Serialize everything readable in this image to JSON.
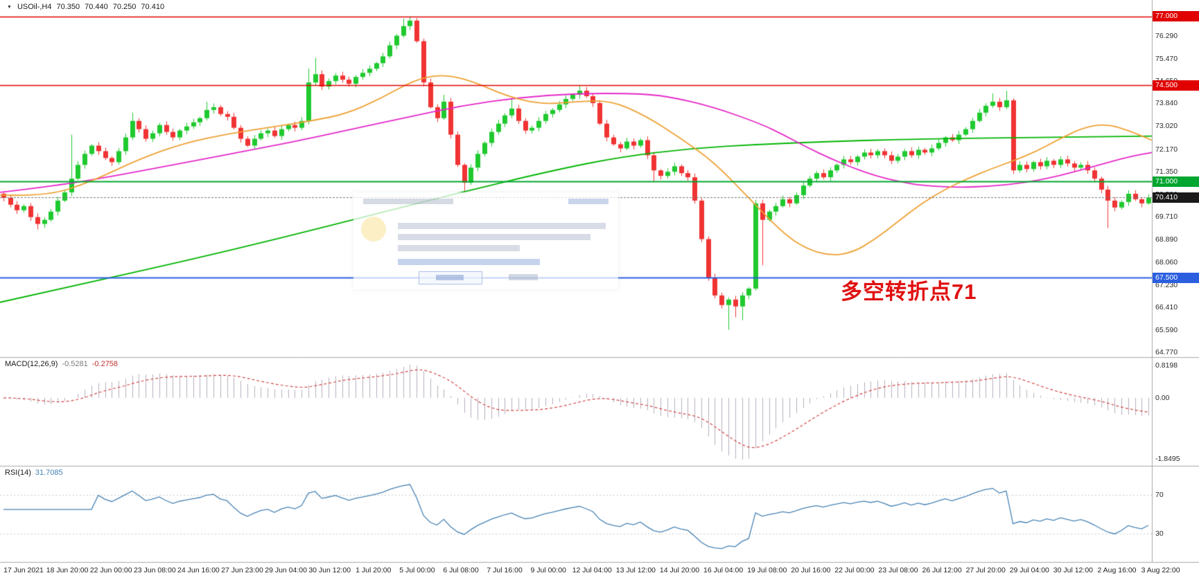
{
  "chart_data": {
    "type": "candlestick+indicators",
    "title": "USOil H4 chart with MACD and RSI",
    "symbol_info": {
      "dropdown_icon": "down-triangle",
      "symbol": "USOil-,H4",
      "open": "70.350",
      "high": "70.440",
      "low": "70.250",
      "close": "70.410"
    },
    "price_pane": {
      "axis": {
        "min": 64.63,
        "max": 77.6,
        "ticks": [
          {
            "label": "76.290",
            "value": 76.29
          },
          {
            "label": "75.470",
            "value": 75.47
          },
          {
            "label": "74.650",
            "value": 74.65
          },
          {
            "label": "73.840",
            "value": 73.84
          },
          {
            "label": "73.020",
            "value": 73.02
          },
          {
            "label": "72.170",
            "value": 72.17
          },
          {
            "label": "71.350",
            "value": 71.35
          },
          {
            "label": "70.530",
            "value": 70.53
          },
          {
            "label": "69.710",
            "value": 69.71
          },
          {
            "label": "68.890",
            "value": 68.89
          },
          {
            "label": "68.060",
            "value": 68.06
          },
          {
            "label": "67.230",
            "value": 67.23
          },
          {
            "label": "66.410",
            "value": 66.41
          },
          {
            "label": "65.590",
            "value": 65.59
          },
          {
            "label": "64.770",
            "value": 64.77
          }
        ]
      },
      "bull_color": "#1fc92f",
      "bear_color": "#f03333",
      "first_open": 70.55,
      "closes": [
        70.4,
        70.15,
        69.95,
        70.1,
        69.7,
        69.45,
        69.6,
        69.9,
        70.3,
        70.6,
        71.1,
        71.6,
        72.0,
        72.3,
        72.1,
        71.85,
        71.7,
        72.1,
        72.6,
        73.2,
        72.9,
        72.55,
        72.75,
        73.05,
        72.8,
        72.6,
        72.85,
        73.0,
        73.15,
        73.3,
        73.6,
        73.7,
        73.45,
        73.35,
        72.95,
        72.55,
        72.3,
        72.55,
        72.75,
        72.85,
        72.65,
        72.9,
        73.05,
        72.95,
        73.2,
        74.6,
        74.9,
        74.45,
        74.65,
        74.85,
        74.7,
        74.55,
        74.8,
        74.95,
        75.1,
        75.3,
        75.55,
        75.95,
        76.3,
        76.65,
        76.85,
        76.1,
        74.6,
        73.7,
        73.3,
        73.9,
        72.7,
        71.6,
        70.95,
        71.5,
        72.0,
        72.4,
        72.8,
        73.1,
        73.4,
        73.65,
        73.2,
        72.85,
        72.95,
        73.2,
        73.45,
        73.6,
        73.8,
        74.0,
        74.15,
        74.3,
        74.1,
        73.85,
        73.1,
        72.6,
        72.35,
        72.2,
        72.45,
        72.3,
        72.5,
        71.95,
        71.4,
        71.2,
        71.35,
        71.55,
        71.3,
        71.15,
        70.3,
        68.9,
        67.5,
        66.85,
        66.5,
        66.7,
        66.45,
        66.85,
        67.1,
        70.2,
        69.6,
        69.9,
        70.1,
        70.35,
        70.2,
        70.5,
        70.85,
        71.1,
        71.3,
        71.15,
        71.4,
        71.6,
        71.8,
        71.7,
        71.9,
        72.05,
        71.95,
        72.1,
        71.95,
        71.75,
        71.9,
        72.1,
        71.95,
        72.15,
        72.05,
        72.2,
        72.4,
        72.6,
        72.5,
        72.7,
        72.9,
        73.2,
        73.5,
        73.75,
        73.9,
        73.7,
        73.95,
        71.4,
        71.6,
        71.45,
        71.7,
        71.55,
        71.75,
        71.6,
        71.8,
        71.65,
        71.5,
        71.6,
        71.4,
        71.1,
        70.7,
        70.3,
        70.05,
        70.25,
        70.55,
        70.35,
        70.2,
        70.41
      ],
      "wick_overrides": {
        "high": {
          "10": 72.7,
          "19": 73.5,
          "30": 73.9,
          "45": 75.1,
          "46": 75.5,
          "59": 76.92,
          "60": 77.0,
          "65": 74.15,
          "75": 74.0,
          "85": 74.5,
          "146": 74.2,
          "148": 74.3
        },
        "low": {
          "5": 69.25,
          "68": 70.6,
          "96": 71.0,
          "107": 65.6,
          "108": 66.05,
          "109": 65.95,
          "112": 67.95,
          "163": 69.3
        }
      },
      "hlines": [
        {
          "label": "77.000",
          "value": 77.0,
          "color": "#e00000",
          "width": 1.4
        },
        {
          "label": "74.500",
          "value": 74.5,
          "color": "#e00000",
          "width": 1.4
        },
        {
          "label": "71.000",
          "value": 71.0,
          "color": "#00a62f",
          "width": 2
        },
        {
          "label": "67.500",
          "value": 67.5,
          "color": "#2b5fe0",
          "width": 2
        }
      ],
      "current_price": {
        "label": "70.410",
        "value": 70.41,
        "line_color": "#777777",
        "badge_color": "#1a1a1a"
      },
      "ma_lines": [
        {
          "name": "ma-long-green",
          "color": "#00b400",
          "points": [
            [
              0,
              66.6
            ],
            [
              0.08,
              67.35
            ],
            [
              0.16,
              68.1
            ],
            [
              0.24,
              68.9
            ],
            [
              0.32,
              69.75
            ],
            [
              0.4,
              70.6
            ],
            [
              0.48,
              71.4
            ],
            [
              0.54,
              71.9
            ],
            [
              0.6,
              72.2
            ],
            [
              0.66,
              72.35
            ],
            [
              0.72,
              72.45
            ],
            [
              0.8,
              72.55
            ],
            [
              0.9,
              72.6
            ],
            [
              1,
              72.65
            ]
          ]
        },
        {
          "name": "ma-medium-magenta",
          "color": "#e428c8",
          "points": [
            [
              0,
              70.6
            ],
            [
              0.05,
              70.85
            ],
            [
              0.1,
              71.2
            ],
            [
              0.15,
              71.6
            ],
            [
              0.2,
              72.0
            ],
            [
              0.25,
              72.4
            ],
            [
              0.3,
              72.85
            ],
            [
              0.35,
              73.3
            ],
            [
              0.4,
              73.75
            ],
            [
              0.45,
              74.05
            ],
            [
              0.5,
              74.2
            ],
            [
              0.55,
              74.2
            ],
            [
              0.58,
              74.1
            ],
            [
              0.62,
              73.7
            ],
            [
              0.66,
              73.1
            ],
            [
              0.68,
              72.7
            ],
            [
              0.7,
              72.25
            ],
            [
              0.72,
              71.85
            ],
            [
              0.74,
              71.5
            ],
            [
              0.76,
              71.2
            ],
            [
              0.78,
              71.0
            ],
            [
              0.8,
              70.85
            ],
            [
              0.83,
              70.78
            ],
            [
              0.86,
              70.82
            ],
            [
              0.89,
              70.95
            ],
            [
              0.92,
              71.2
            ],
            [
              0.95,
              71.55
            ],
            [
              0.98,
              71.9
            ],
            [
              1,
              72.05
            ]
          ]
        },
        {
          "name": "ma-fast-orange",
          "color": "#eda133",
          "points": [
            [
              0,
              70.5
            ],
            [
              0.04,
              70.45
            ],
            [
              0.08,
              71.0
            ],
            [
              0.12,
              71.8
            ],
            [
              0.16,
              72.4
            ],
            [
              0.2,
              72.75
            ],
            [
              0.24,
              73.0
            ],
            [
              0.27,
              73.2
            ],
            [
              0.3,
              73.45
            ],
            [
              0.33,
              74.0
            ],
            [
              0.36,
              74.7
            ],
            [
              0.385,
              74.9
            ],
            [
              0.41,
              74.65
            ],
            [
              0.44,
              74.1
            ],
            [
              0.47,
              73.8
            ],
            [
              0.5,
              73.9
            ],
            [
              0.53,
              73.95
            ],
            [
              0.56,
              73.4
            ],
            [
              0.59,
              72.6
            ],
            [
              0.62,
              71.7
            ],
            [
              0.65,
              70.4
            ],
            [
              0.68,
              69.1
            ],
            [
              0.7,
              68.55
            ],
            [
              0.72,
              68.3
            ],
            [
              0.74,
              68.4
            ],
            [
              0.76,
              68.9
            ],
            [
              0.78,
              69.55
            ],
            [
              0.8,
              70.2
            ],
            [
              0.82,
              70.7
            ],
            [
              0.84,
              71.1
            ],
            [
              0.86,
              71.45
            ],
            [
              0.88,
              71.75
            ],
            [
              0.9,
              72.1
            ],
            [
              0.92,
              72.55
            ],
            [
              0.94,
              72.95
            ],
            [
              0.96,
              73.1
            ],
            [
              0.98,
              72.85
            ],
            [
              1,
              72.5
            ]
          ]
        }
      ]
    },
    "macd_pane": {
      "label": "MACD(12,26,9)",
      "macd_value": "-0.5281",
      "signal_value": "-0.2758",
      "axis_labels": [
        "0.8198",
        "0.00",
        "-1.8495"
      ],
      "params": {
        "fast": 12,
        "slow": 26,
        "signal": 9
      },
      "hist_color": "#b7aebc",
      "signal_color": "#d04545"
    },
    "rsi_pane": {
      "label": "RSI(14)",
      "value": "31.7085",
      "period": 14,
      "levels": [
        70,
        30
      ],
      "level_labels": [
        "70",
        "30"
      ],
      "line_color": "#4682b4",
      "level_color": "#c9c9c9"
    },
    "time_axis": {
      "labels": [
        "17 Jun 2021",
        "18 Jun 20:00",
        "22 Jun 00:00",
        "23 Jun 08:00",
        "24 Jun 16:00",
        "27 Jun 23:00",
        "29 Jun 04:00",
        "30 Jun 12:00",
        "1 Jul 20:00",
        "5 Jul 00:00",
        "6 Jul 08:00",
        "7 Jul 16:00",
        "9 Jul 00:00",
        "12 Jul 04:00",
        "13 Jul 12:00",
        "14 Jul 20:00",
        "16 Jul 04:00",
        "19 Jul 08:00",
        "20 Jul 16:00",
        "22 Jul 00:00",
        "23 Jul 08:00",
        "26 Jul 12:00",
        "27 Jul 20:00",
        "29 Jul 04:00",
        "30 Jul 12:00",
        "2 Aug 16:00",
        "3 Aug 22:00"
      ]
    },
    "annotation": {
      "text": "多空转折点71",
      "color": "#e01010"
    }
  }
}
